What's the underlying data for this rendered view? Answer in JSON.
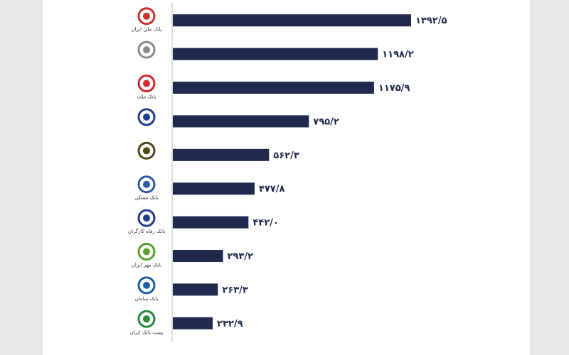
{
  "chart_data": {
    "type": "bar",
    "orientation": "horizontal",
    "categories": [
      "بانک ملی ایران",
      null,
      "بانک ملت",
      null,
      null,
      "بانک مسکن",
      "بانک رفاه کارگران",
      "بانک مهر ایران",
      "بانک سامان",
      "پست بانک ایران"
    ],
    "values": [
      1392.5,
      1198.2,
      1175.9,
      795.2,
      562.3,
      477.8,
      442.0,
      293.2,
      263.3,
      232.9
    ],
    "value_labels": [
      "۱۳۹۲/۵",
      "۱۱۹۸/۲",
      "۱۱۷۵/۹",
      "۷۹۵/۲",
      "۵۶۲/۳",
      "۴۷۷/۸",
      "۴۴۲/۰",
      "۲۹۳/۲",
      "۲۶۳/۳",
      "۲۳۲/۹"
    ],
    "color": "#1f2a4e"
  }
}
